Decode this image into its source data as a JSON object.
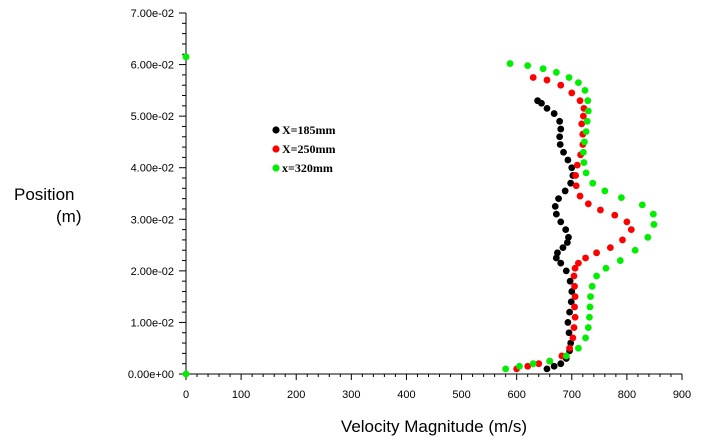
{
  "chart_data": {
    "type": "scatter",
    "title": "",
    "xlabel": "Velocity Magnitude (m/s)",
    "ylabel_line1": "Position",
    "ylabel_line2": "(m)",
    "xlim": [
      0,
      900
    ],
    "ylim": [
      0,
      0.07
    ],
    "x_ticks": [
      0,
      100,
      200,
      300,
      400,
      500,
      600,
      700,
      800,
      900
    ],
    "x_tick_labels": [
      "0",
      "100",
      "200",
      "300",
      "400",
      "500",
      "600",
      "700",
      "800",
      "900"
    ],
    "y_ticks": [
      0,
      0.01,
      0.02,
      0.03,
      0.04,
      0.05,
      0.06,
      0.07
    ],
    "y_tick_labels": [
      "0.00e+00",
      "1.00e-02",
      "2.00e-02",
      "3.00e-02",
      "4.00e-02",
      "5.00e-02",
      "6.00e-02",
      "7.00e-02"
    ],
    "grid": false,
    "legend_position": "upper-middle",
    "series": [
      {
        "name": "X=185mm",
        "color": "#000000",
        "points": [
          [
            655,
            0.001
          ],
          [
            668,
            0.0015
          ],
          [
            680,
            0.002
          ],
          [
            690,
            0.003
          ],
          [
            696,
            0.0045
          ],
          [
            698,
            0.006
          ],
          [
            695,
            0.008
          ],
          [
            693,
            0.01
          ],
          [
            696,
            0.012
          ],
          [
            699,
            0.014
          ],
          [
            700,
            0.016
          ],
          [
            697,
            0.018
          ],
          [
            690,
            0.02
          ],
          [
            680,
            0.0215
          ],
          [
            672,
            0.0225
          ],
          [
            674,
            0.0235
          ],
          [
            684,
            0.0245
          ],
          [
            692,
            0.0255
          ],
          [
            694,
            0.0265
          ],
          [
            689,
            0.028
          ],
          [
            680,
            0.0295
          ],
          [
            672,
            0.031
          ],
          [
            670,
            0.0325
          ],
          [
            676,
            0.034
          ],
          [
            688,
            0.0355
          ],
          [
            698,
            0.037
          ],
          [
            702,
            0.0385
          ],
          [
            700,
            0.04
          ],
          [
            693,
            0.0415
          ],
          [
            685,
            0.043
          ],
          [
            679,
            0.0445
          ],
          [
            678,
            0.046
          ],
          [
            680,
            0.0475
          ],
          [
            678,
            0.049
          ],
          [
            668,
            0.0505
          ],
          [
            655,
            0.0515
          ],
          [
            645,
            0.0525
          ],
          [
            638,
            0.053
          ]
        ]
      },
      {
        "name": "X=250mm",
        "color": "#ff0000",
        "points": [
          [
            600,
            0.001
          ],
          [
            620,
            0.0015
          ],
          [
            640,
            0.002
          ],
          [
            660,
            0.0025
          ],
          [
            682,
            0.0035
          ],
          [
            696,
            0.005
          ],
          [
            702,
            0.007
          ],
          [
            704,
            0.009
          ],
          [
            706,
            0.011
          ],
          [
            705,
            0.013
          ],
          [
            706,
            0.015
          ],
          [
            705,
            0.017
          ],
          [
            704,
            0.019
          ],
          [
            706,
            0.0205
          ],
          [
            712,
            0.0215
          ],
          [
            725,
            0.0225
          ],
          [
            745,
            0.0235
          ],
          [
            770,
            0.0245
          ],
          [
            792,
            0.026
          ],
          [
            808,
            0.028
          ],
          [
            800,
            0.0295
          ],
          [
            778,
            0.0308
          ],
          [
            752,
            0.0318
          ],
          [
            730,
            0.033
          ],
          [
            715,
            0.0345
          ],
          [
            708,
            0.0365
          ],
          [
            707,
            0.0385
          ],
          [
            710,
            0.0405
          ],
          [
            716,
            0.0425
          ],
          [
            720,
            0.0445
          ],
          [
            720,
            0.0465
          ],
          [
            718,
            0.0485
          ],
          [
            721,
            0.05
          ],
          [
            722,
            0.0515
          ],
          [
            715,
            0.053
          ],
          [
            700,
            0.0545
          ],
          [
            680,
            0.056
          ],
          [
            655,
            0.057
          ],
          [
            630,
            0.0575
          ]
        ]
      },
      {
        "name": "x=320mm",
        "color": "#00ee00",
        "points": [
          [
            0,
            0.0
          ],
          [
            580,
            0.001
          ],
          [
            605,
            0.0015
          ],
          [
            630,
            0.002
          ],
          [
            660,
            0.0025
          ],
          [
            690,
            0.0035
          ],
          [
            712,
            0.005
          ],
          [
            725,
            0.007
          ],
          [
            730,
            0.009
          ],
          [
            732,
            0.011
          ],
          [
            733,
            0.013
          ],
          [
            734,
            0.015
          ],
          [
            737,
            0.017
          ],
          [
            745,
            0.019
          ],
          [
            762,
            0.0205
          ],
          [
            788,
            0.022
          ],
          [
            815,
            0.024
          ],
          [
            838,
            0.0265
          ],
          [
            849,
            0.029
          ],
          [
            848,
            0.031
          ],
          [
            828,
            0.0328
          ],
          [
            790,
            0.0342
          ],
          [
            760,
            0.0355
          ],
          [
            738,
            0.037
          ],
          [
            726,
            0.039
          ],
          [
            722,
            0.041
          ],
          [
            721,
            0.043
          ],
          [
            723,
            0.045
          ],
          [
            726,
            0.047
          ],
          [
            728,
            0.049
          ],
          [
            730,
            0.051
          ],
          [
            729,
            0.053
          ],
          [
            724,
            0.055
          ],
          [
            712,
            0.0565
          ],
          [
            695,
            0.0575
          ],
          [
            672,
            0.0585
          ],
          [
            648,
            0.0592
          ],
          [
            620,
            0.0598
          ],
          [
            588,
            0.0602
          ],
          [
            0,
            0.0615
          ]
        ]
      }
    ]
  }
}
